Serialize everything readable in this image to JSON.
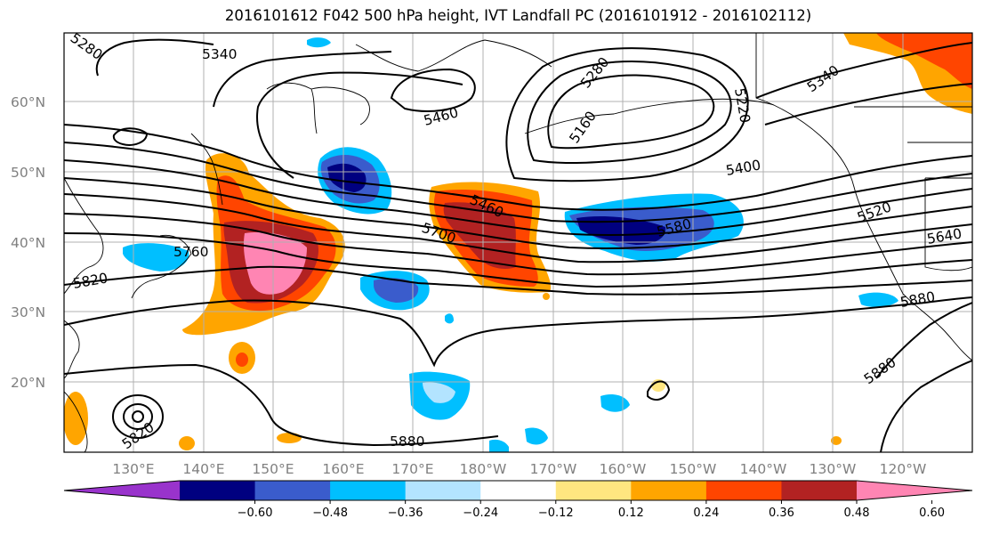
{
  "title": "2016101612 F042 500 hPa height, IVT Landfall PC (2016101912 - 2016102112)",
  "lat_labels": [
    "60°N",
    "50°N",
    "40°N",
    "30°N",
    "20°N"
  ],
  "lon_labels": [
    "130°E",
    "140°E",
    "150°E",
    "160°E",
    "170°E",
    "180°W",
    "170°W",
    "160°W",
    "150°W",
    "140°W",
    "130°W",
    "120°W"
  ],
  "contour_labels": [
    "5340",
    "5460",
    "5280",
    "5160",
    "5220",
    "5340",
    "5400",
    "5460",
    "5700",
    "5580",
    "5520",
    "5640",
    "5760",
    "5820",
    "5880",
    "5880",
    "5820",
    "5880",
    "5280"
  ],
  "colorbar": {
    "ticks": [
      "−0.60",
      "−0.48",
      "−0.36",
      "−0.24",
      "−0.12",
      "0.12",
      "0.24",
      "0.36",
      "0.48",
      "0.60"
    ],
    "colors": [
      "#9933cc",
      "#000080",
      "#3a5ccc",
      "#00bfff",
      "#b3e4ff",
      "#ffffff",
      "#ffe680",
      "#ffa500",
      "#ff4500",
      "#b22222",
      "#ff85b3"
    ]
  }
}
